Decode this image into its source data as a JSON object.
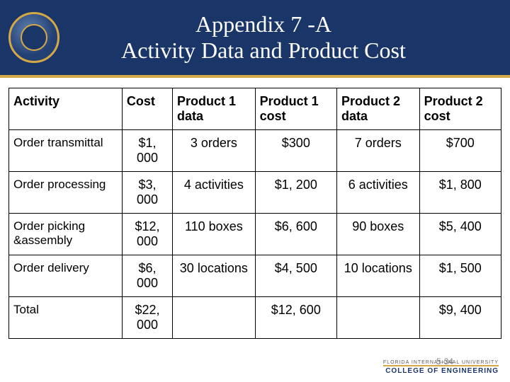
{
  "header": {
    "title_line1": "Appendix 7 -A",
    "title_line2": "Activity Data and Product Cost"
  },
  "table": {
    "columns": [
      "Activity",
      "Cost",
      "Product 1 data",
      "Product 1 cost",
      "Product 2 data",
      "Product 2 cost"
    ],
    "rows": [
      [
        "Order transmittal",
        "$1, 000",
        "3 orders",
        "$300",
        "7 orders",
        "$700"
      ],
      [
        "Order processing",
        "$3, 000",
        "4 activities",
        "$1, 200",
        "6 activities",
        "$1, 800"
      ],
      [
        "Order picking &assembly",
        "$12, 000",
        "110 boxes",
        "$6, 600",
        "90 boxes",
        "$5, 400"
      ],
      [
        "Order delivery",
        "$6, 000",
        "30 locations",
        "$4, 500",
        "10 locations",
        "$1, 500"
      ],
      [
        "Total",
        "$22, 000",
        "",
        "$12, 600",
        "",
        "$9, 400"
      ]
    ]
  },
  "footer": {
    "university": "FLORIDA INTERNATIONAL UNIVERSITY",
    "college": "COLLEGE OF ENGINEERING",
    "page": "5-34"
  },
  "colors": {
    "band": "#1a3668",
    "gold": "#d4a845",
    "white": "#ffffff",
    "black": "#000000"
  }
}
